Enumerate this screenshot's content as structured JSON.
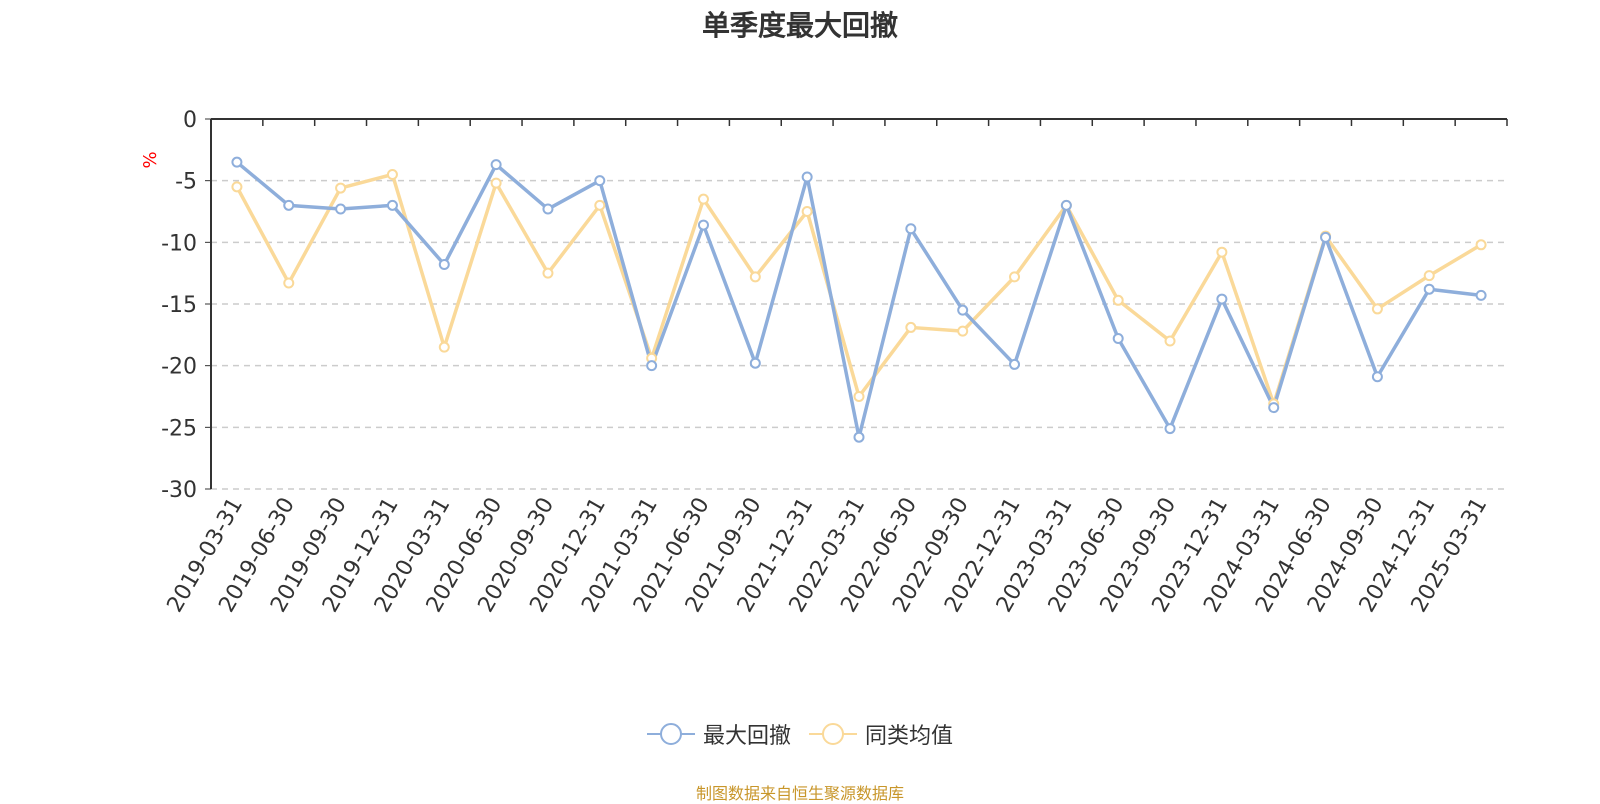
{
  "chart_data": {
    "type": "line",
    "title": "单季度最大回撤",
    "ylabel": "%",
    "ylim": [
      -30,
      0
    ],
    "yticks": [
      0,
      -5,
      -10,
      -15,
      -20,
      -25,
      -30
    ],
    "grid": true,
    "legend_position": "bottom",
    "categories": [
      "2019-03-31",
      "2019-06-30",
      "2019-09-30",
      "2019-12-31",
      "2020-03-31",
      "2020-06-30",
      "2020-09-30",
      "2020-12-31",
      "2021-03-31",
      "2021-06-30",
      "2021-09-30",
      "2021-12-31",
      "2022-03-31",
      "2022-06-30",
      "2022-09-30",
      "2022-12-31",
      "2023-03-31",
      "2023-06-30",
      "2023-09-30",
      "2023-12-31",
      "2024-03-31",
      "2024-06-30",
      "2024-09-30",
      "2024-12-31",
      "2025-03-31"
    ],
    "series": [
      {
        "name": "最大回撤",
        "color": "#8eaedb",
        "values": [
          -3.5,
          -7.0,
          -7.3,
          -7.0,
          -11.8,
          -3.7,
          -7.3,
          -5.0,
          -20.0,
          -8.6,
          -19.8,
          -4.7,
          -25.8,
          -8.9,
          -15.5,
          -19.9,
          -7.0,
          -17.8,
          -25.1,
          -14.6,
          -23.4,
          -9.6,
          -20.9,
          -13.8,
          -14.3
        ]
      },
      {
        "name": "同类均值",
        "color": "#fad999",
        "values": [
          -5.5,
          -13.3,
          -5.6,
          -4.5,
          -18.5,
          -5.2,
          -12.5,
          -7.0,
          -19.4,
          -6.5,
          -12.8,
          -7.5,
          -22.5,
          -16.9,
          -17.2,
          -12.8,
          -7.0,
          -14.7,
          -18.0,
          -10.8,
          -23.1,
          -9.5,
          -15.4,
          -12.7,
          -10.2
        ]
      }
    ]
  },
  "source_note": "制图数据来自恒生聚源数据库"
}
